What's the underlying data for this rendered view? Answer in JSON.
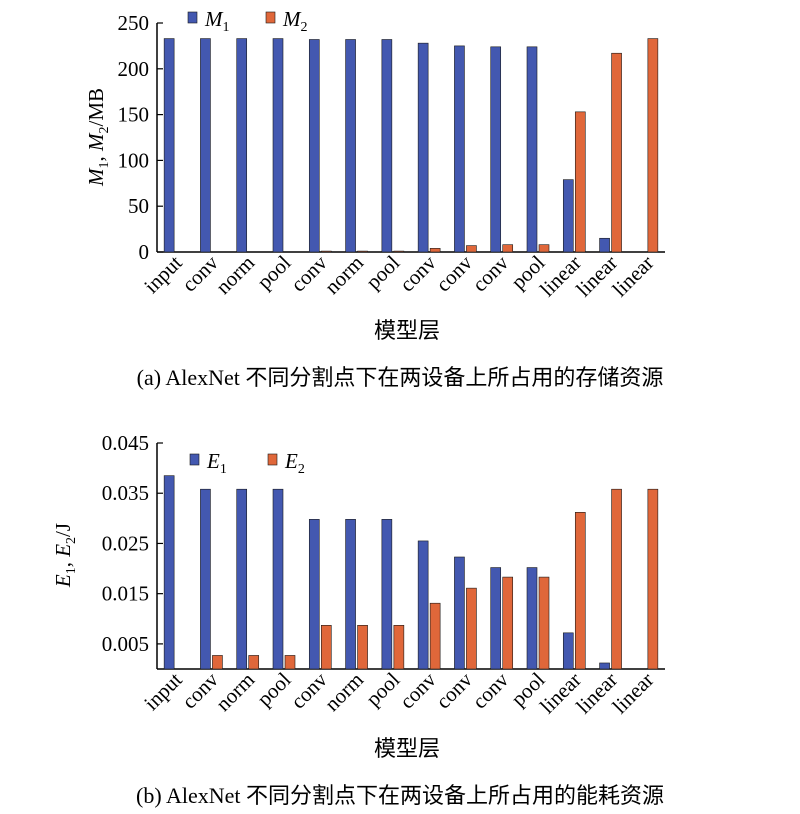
{
  "colors": {
    "series1": "#4358b0",
    "series2": "#e0673a"
  },
  "chart_data": [
    {
      "type": "bar",
      "caption": "(a) AlexNet 不同分割点下在两设备上所占用的存储资源",
      "xlabel": "模型层",
      "ylabel": {
        "a": "M",
        "a_sub": "1",
        "sep": ", ",
        "b": "M",
        "b_sub": "2",
        "unit": "/MB"
      },
      "ylim": [
        0,
        250
      ],
      "yticks": [
        "0",
        "50",
        "100",
        "150",
        "200",
        "250"
      ],
      "ytick_values": [
        0,
        50,
        100,
        150,
        200,
        250
      ],
      "categories": [
        "input",
        "conv",
        "norm",
        "pool",
        "conv",
        "norm",
        "pool",
        "conv",
        "conv",
        "conv",
        "pool",
        "linear",
        "linear",
        "linear"
      ],
      "legend_position": "top-left",
      "series": [
        {
          "name": "M",
          "sub": "1",
          "values": [
            233,
            233,
            233,
            233,
            232,
            232,
            232,
            228,
            225,
            224,
            224,
            79,
            15,
            0
          ]
        },
        {
          "name": "M",
          "sub": "2",
          "values": [
            0,
            0,
            0,
            0,
            1,
            1,
            1,
            4,
            7,
            8,
            8,
            153,
            217,
            233
          ]
        }
      ]
    },
    {
      "type": "bar",
      "caption": "(b) AlexNet 不同分割点下在两设备上所占用的能耗资源",
      "xlabel": "模型层",
      "ylabel": {
        "a": "E",
        "a_sub": "1",
        "sep": ", ",
        "b": "E",
        "b_sub": "2",
        "unit": "/J"
      },
      "ylim": [
        0,
        0.045
      ],
      "yticks": [
        "0.005",
        "0.015",
        "0.025",
        "0.035",
        "0.045"
      ],
      "ytick_values": [
        0.005,
        0.015,
        0.025,
        0.035,
        0.045
      ],
      "categories": [
        "input",
        "conv",
        "norm",
        "pool",
        "conv",
        "norm",
        "pool",
        "conv",
        "conv",
        "conv",
        "pool",
        "linear",
        "linear",
        "linear"
      ],
      "legend_position": "top-left",
      "series": [
        {
          "name": "E",
          "sub": "1",
          "values": [
            0.0385,
            0.0358,
            0.0358,
            0.0358,
            0.0298,
            0.0298,
            0.0298,
            0.0255,
            0.0223,
            0.0202,
            0.0202,
            0.0072,
            0.0012,
            0
          ]
        },
        {
          "name": "E",
          "sub": "2",
          "values": [
            0,
            0.0027,
            0.0027,
            0.0027,
            0.0087,
            0.0087,
            0.0087,
            0.0131,
            0.0161,
            0.0183,
            0.0183,
            0.0312,
            0.0358,
            0.0358
          ]
        }
      ]
    }
  ]
}
